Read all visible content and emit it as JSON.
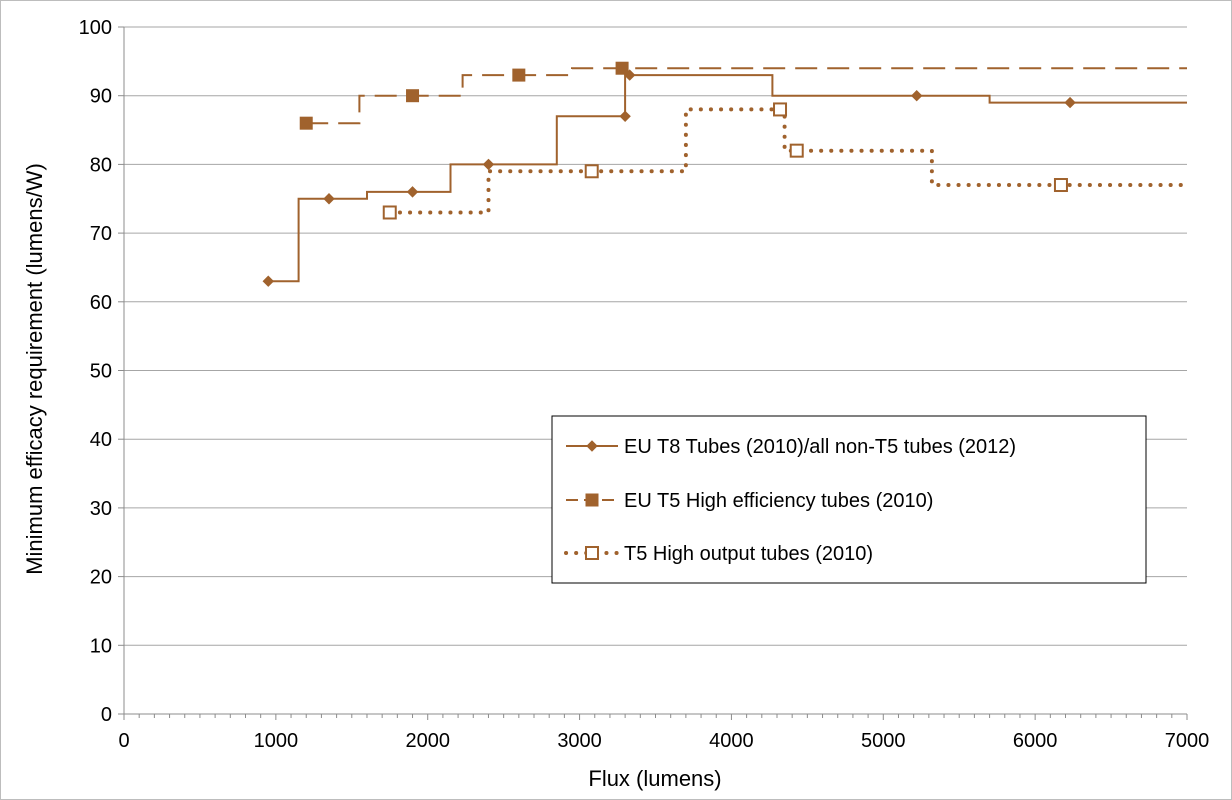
{
  "chart_data": {
    "type": "line",
    "xlabel": "Flux (lumens)",
    "ylabel": "Minimum efficacy requirement (lumens/W)",
    "xlim": [
      0,
      7000
    ],
    "ylim": [
      0,
      100
    ],
    "x_ticks": [
      0,
      1000,
      2000,
      3000,
      4000,
      5000,
      6000,
      7000
    ],
    "y_ticks": [
      0,
      10,
      20,
      30,
      40,
      50,
      60,
      70,
      80,
      90,
      100
    ],
    "x_tick_labels": [
      "0",
      "1000",
      "2000",
      "3000",
      "4000",
      "5000",
      "6000",
      "7000"
    ],
    "y_tick_labels": [
      "0",
      "10",
      "20",
      "30",
      "40",
      "50",
      "60",
      "70",
      "80",
      "90",
      "100"
    ],
    "grid": "horizontal",
    "legend_position": "right-center",
    "series": [
      {
        "name": "EU T8 Tubes (2010)/all non-T5 tubes (2012)",
        "color": "#a0622d",
        "line_style": "solid",
        "marker": "diamond",
        "step_points": [
          [
            930,
            63
          ],
          [
            1150,
            63
          ],
          [
            1150,
            75
          ],
          [
            1600,
            75
          ],
          [
            1600,
            76
          ],
          [
            2150,
            76
          ],
          [
            2150,
            80
          ],
          [
            2850,
            80
          ],
          [
            2850,
            87
          ],
          [
            3300,
            87
          ],
          [
            3300,
            93
          ],
          [
            4270,
            93
          ],
          [
            4270,
            90
          ],
          [
            5700,
            90
          ],
          [
            5700,
            89
          ],
          [
            7000,
            89
          ]
        ],
        "markers": [
          [
            950,
            63
          ],
          [
            1350,
            75
          ],
          [
            1900,
            76
          ],
          [
            2400,
            80
          ],
          [
            3300,
            87
          ],
          [
            3330,
            93
          ],
          [
            5220,
            90
          ],
          [
            6230,
            89
          ]
        ]
      },
      {
        "name": "EU T5 High efficiency tubes (2010)",
        "color": "#a0622d",
        "line_style": "dashed",
        "marker": "square",
        "step_points": [
          [
            1200,
            86
          ],
          [
            1550,
            86
          ],
          [
            1550,
            90
          ],
          [
            2230,
            90
          ],
          [
            2230,
            93
          ],
          [
            2950,
            93
          ],
          [
            2950,
            94
          ],
          [
            7000,
            94
          ]
        ],
        "markers": [
          [
            1200,
            86
          ],
          [
            1900,
            90
          ],
          [
            2600,
            93
          ],
          [
            3280,
            94
          ]
        ]
      },
      {
        "name": "T5 High output tubes (2010)",
        "color": "#a0622d",
        "line_style": "dotted",
        "marker": "open-square",
        "step_points": [
          [
            1750,
            73
          ],
          [
            2400,
            73
          ],
          [
            2400,
            79
          ],
          [
            3700,
            79
          ],
          [
            3700,
            88
          ],
          [
            4350,
            88
          ],
          [
            4350,
            82
          ],
          [
            5320,
            82
          ],
          [
            5320,
            77
          ],
          [
            7000,
            77
          ]
        ],
        "markers": [
          [
            1750,
            73
          ],
          [
            3080,
            79
          ],
          [
            4320,
            88
          ],
          [
            4430,
            82
          ],
          [
            6170,
            77
          ]
        ]
      }
    ]
  }
}
